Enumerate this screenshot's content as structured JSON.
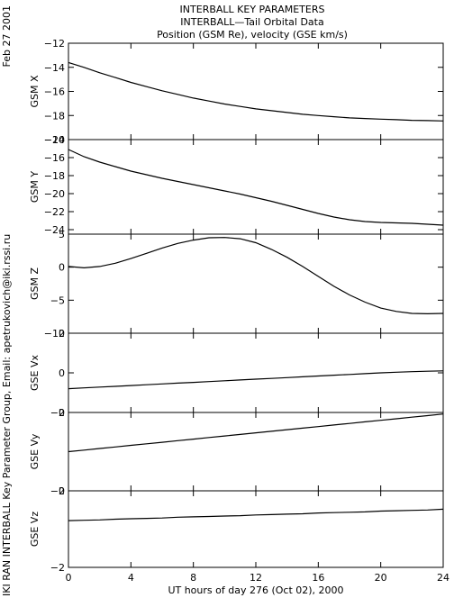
{
  "header": {
    "title_lines": [
      "INTERBALL KEY PARAMETERS",
      "INTERBALL—Tail Orbital Data",
      "Position (GSM Re), velocity (GSE km/s)"
    ],
    "date": "Feb 27 2001",
    "credit": "IKI RAN INTERBALL Key Parameter Group, Email: apetrukovich@iki.rssi.ru"
  },
  "chart_data": {
    "type": "line",
    "xlabel": "UT hours of day 276 (Oct 02), 2000",
    "xlim": [
      0,
      24
    ],
    "xticks": [
      0,
      4,
      8,
      12,
      16,
      20,
      24
    ],
    "x": [
      0,
      1,
      2,
      3,
      4,
      5,
      6,
      7,
      8,
      9,
      10,
      11,
      12,
      13,
      14,
      15,
      16,
      17,
      18,
      19,
      20,
      21,
      22,
      23,
      24
    ],
    "panels": [
      {
        "ylabel": "GSM X",
        "ylim": [
          -20,
          -12
        ],
        "yticks": [
          -20,
          -18,
          -16,
          -14,
          -12
        ],
        "values": [
          -13.6,
          -14.0,
          -14.45,
          -14.85,
          -15.25,
          -15.6,
          -15.95,
          -16.25,
          -16.55,
          -16.8,
          -17.05,
          -17.25,
          -17.45,
          -17.6,
          -17.75,
          -17.9,
          -18.0,
          -18.1,
          -18.2,
          -18.25,
          -18.3,
          -18.35,
          -18.4,
          -18.42,
          -18.45
        ]
      },
      {
        "ylabel": "GSM Y",
        "ylim": [
          -24.5,
          -14
        ],
        "yticks": [
          -24,
          -22,
          -20,
          -18,
          -16,
          -14
        ],
        "values": [
          -15.1,
          -15.9,
          -16.5,
          -17.0,
          -17.5,
          -17.9,
          -18.3,
          -18.65,
          -19.0,
          -19.35,
          -19.7,
          -20.05,
          -20.45,
          -20.85,
          -21.3,
          -21.75,
          -22.2,
          -22.6,
          -22.9,
          -23.1,
          -23.2,
          -23.25,
          -23.3,
          -23.4,
          -23.5
        ]
      },
      {
        "ylabel": "GSM Z",
        "ylim": [
          -10,
          5
        ],
        "yticks": [
          -10,
          -5,
          0,
          5
        ],
        "values": [
          0.1,
          -0.1,
          0.1,
          0.6,
          1.3,
          2.1,
          2.9,
          3.6,
          4.1,
          4.45,
          4.5,
          4.3,
          3.7,
          2.7,
          1.5,
          0.1,
          -1.4,
          -2.9,
          -4.2,
          -5.3,
          -6.2,
          -6.7,
          -7.0,
          -7.05,
          -7.0
        ]
      },
      {
        "ylabel": "GSE Vx",
        "ylim": [
          -2,
          2
        ],
        "yticks": [
          -2,
          0,
          2
        ],
        "values": [
          -0.8,
          -0.76,
          -0.72,
          -0.68,
          -0.64,
          -0.6,
          -0.56,
          -0.52,
          -0.48,
          -0.44,
          -0.4,
          -0.36,
          -0.32,
          -0.28,
          -0.24,
          -0.2,
          -0.16,
          -0.12,
          -0.08,
          -0.04,
          0.0,
          0.03,
          0.06,
          0.08,
          0.1
        ]
      },
      {
        "ylabel": "GSE Vy",
        "ylim": [
          -2,
          0
        ],
        "yticks": [
          -2,
          0
        ],
        "values": [
          -1.0,
          -0.96,
          -0.92,
          -0.88,
          -0.84,
          -0.8,
          -0.76,
          -0.72,
          -0.68,
          -0.64,
          -0.6,
          -0.56,
          -0.52,
          -0.48,
          -0.44,
          -0.4,
          -0.36,
          -0.32,
          -0.28,
          -0.24,
          -0.2,
          -0.16,
          -0.12,
          -0.08,
          -0.04
        ]
      },
      {
        "ylabel": "GSE Vz",
        "ylim": [
          -2,
          0
        ],
        "yticks": [
          -2,
          0
        ],
        "values": [
          -0.78,
          -0.77,
          -0.76,
          -0.74,
          -0.73,
          -0.72,
          -0.71,
          -0.69,
          -0.68,
          -0.67,
          -0.66,
          -0.65,
          -0.63,
          -0.62,
          -0.61,
          -0.6,
          -0.58,
          -0.57,
          -0.56,
          -0.55,
          -0.53,
          -0.52,
          -0.51,
          -0.5,
          -0.48
        ]
      }
    ]
  }
}
